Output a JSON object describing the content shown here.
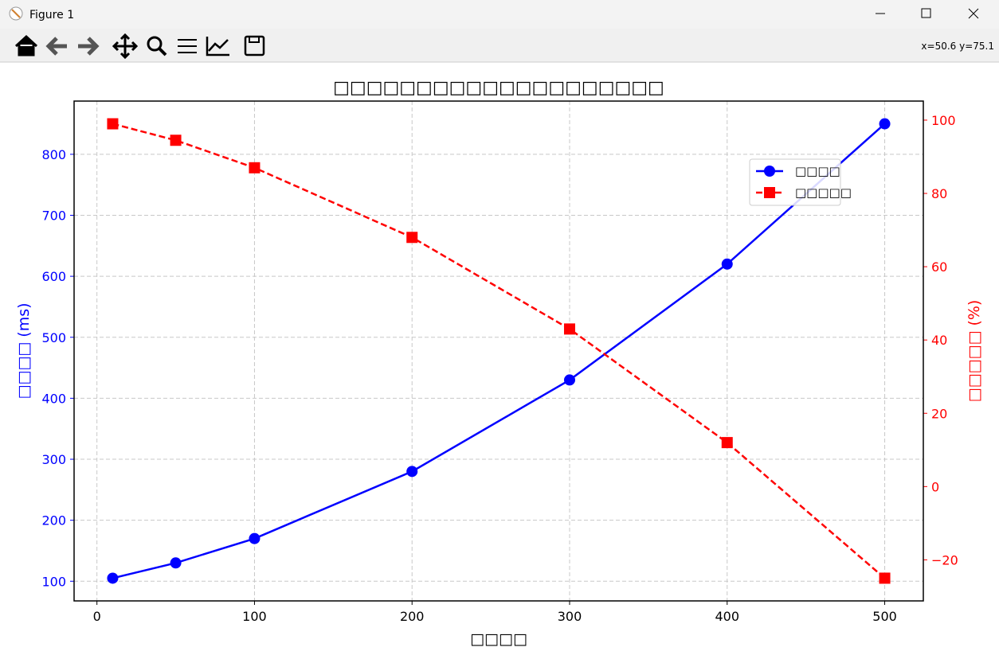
{
  "window": {
    "title": "Figure 1",
    "status": "x=50.6 y=75.1"
  },
  "chart_data": {
    "type": "line",
    "title": "□□□□□□□□□□□□□□□□□□□□",
    "x_label": "□□□□",
    "y_label": "□□□□ (ms)",
    "y2_label": "□□□□□ (%)",
    "x": [
      10,
      50,
      100,
      200,
      300,
      400,
      500
    ],
    "series": [
      {
        "name": "□□□□",
        "color": "#0000ff",
        "marker": "circle",
        "dash": false,
        "values": [
          105,
          130,
          170,
          280,
          430,
          620,
          850
        ]
      },
      {
        "name": "□□□□□",
        "color": "#ff0000",
        "marker": "square",
        "dash": true,
        "axis": "y2",
        "values": [
          99,
          94.5,
          87,
          68,
          43,
          12,
          -25
        ]
      }
    ],
    "xlim": [
      -14.5,
      524.5
    ],
    "xticks": [
      0,
      100,
      200,
      300,
      400,
      500
    ],
    "ylim": [
      67.75,
      887.25
    ],
    "yticks": [
      100,
      200,
      300,
      400,
      500,
      600,
      700,
      800
    ],
    "y2lim": [
      -31.2,
      105.2
    ],
    "y2ticks": [
      {
        "value": -20,
        "label": "−20"
      },
      0,
      20,
      40,
      60,
      80,
      100
    ],
    "grid": true,
    "legend": "upper right"
  }
}
